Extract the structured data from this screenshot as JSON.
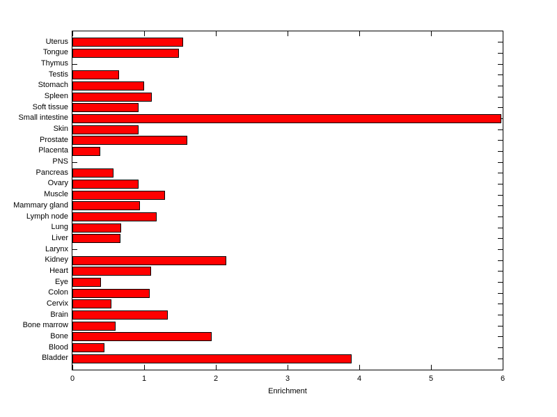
{
  "chart_data": {
    "type": "bar",
    "orientation": "horizontal",
    "title": "",
    "xlabel": "Enrichment",
    "ylabel": "",
    "xlim": [
      0,
      6
    ],
    "xticks": [
      "0",
      "1",
      "2",
      "3",
      "4",
      "5",
      "6"
    ],
    "grid": false,
    "legend_position": "none",
    "bar_color": "#ff0000",
    "bar_edge_color": "#000000",
    "background_color": "#ffffff",
    "axis_color": "#000000",
    "categories": [
      "Uterus",
      "Tongue",
      "Thymus",
      "Testis",
      "Stomach",
      "Spleen",
      "Soft tissue",
      "Small intestine",
      "Skin",
      "Prostate",
      "Placenta",
      "PNS",
      "Pancreas",
      "Ovary",
      "Muscle",
      "Mammary gland",
      "Lymph node",
      "Lung",
      "Liver",
      "Larynx",
      "Kidney",
      "Heart",
      "Eye",
      "Colon",
      "Cervix",
      "Brain",
      "Bone marrow",
      "Bone",
      "Blood",
      "Bladder"
    ],
    "values": [
      1.52,
      1.47,
      0,
      0.63,
      0.98,
      1.09,
      0.9,
      5.96,
      0.9,
      1.58,
      0.37,
      0,
      0.55,
      0.9,
      1.27,
      0.92,
      1.16,
      0.66,
      0.65,
      0,
      2.13,
      1.08,
      0.38,
      1.06,
      0.52,
      1.31,
      0.58,
      1.92,
      0.43,
      3.87
    ]
  }
}
